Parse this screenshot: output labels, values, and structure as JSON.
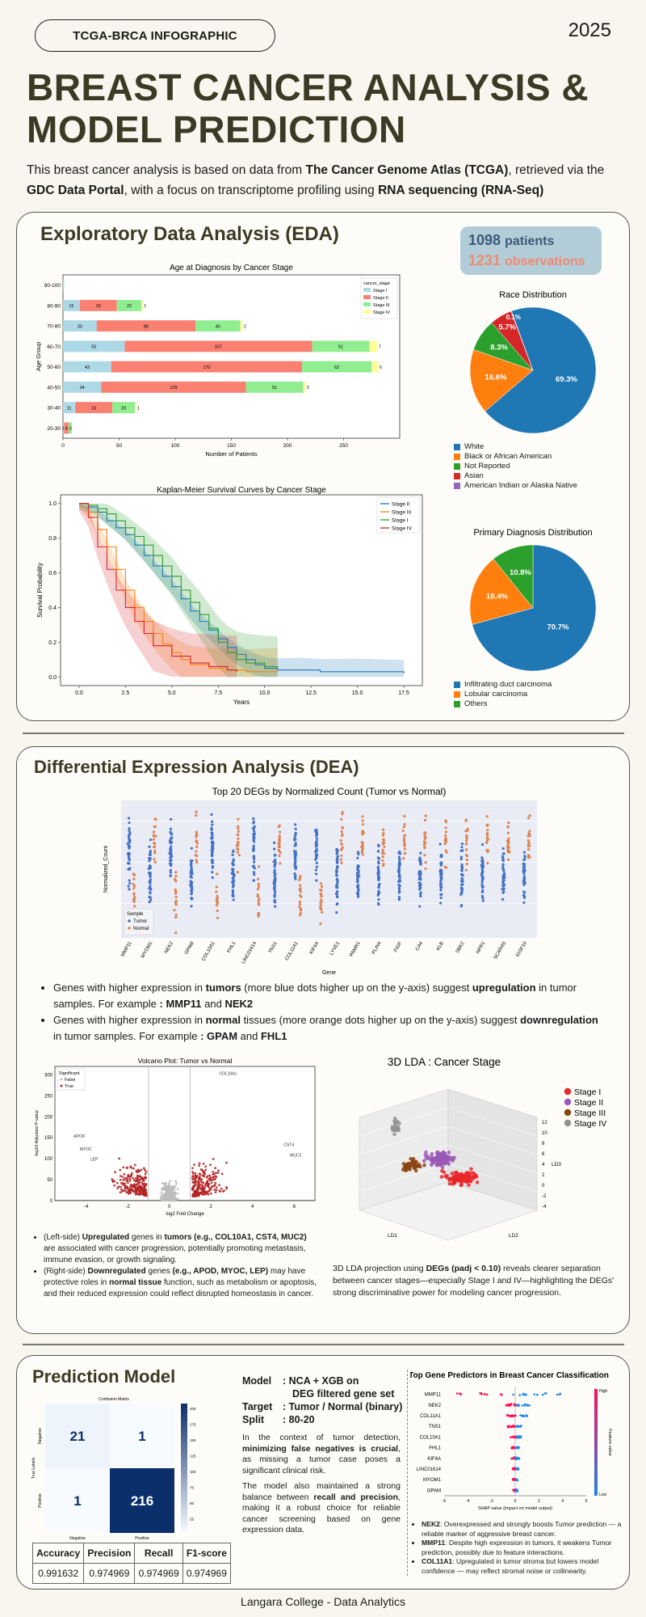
{
  "header": {
    "tag": "TCGA-BRCA INFOGRAPHIC",
    "year": "2025",
    "title_line1": "BREAST CANCER ANALYSIS &",
    "title_line2": "MODEL PREDICTION",
    "intro": {
      "t1": "This breast cancer analysis is based on data from ",
      "b1": "The Cancer Genome Atlas (TCGA)",
      "t2": ", retrieved via the ",
      "b2": "GDC Data Portal",
      "t3": ", with a focus on transcriptome profiling using ",
      "b3": "RNA sequencing (RNA-Seq)"
    }
  },
  "eda": {
    "title": "Exploratory Data Analysis (EDA)",
    "stats": {
      "patients_num": "1098",
      "patients_label": "patients",
      "obs_num": "1231",
      "obs_label": "observations"
    }
  },
  "colors": {
    "stage1": "#add8e6",
    "stage2": "#fa8072",
    "stage3": "#90ee90",
    "stage4": "#ffff99",
    "km_stage2": "#1f77b4",
    "km_stage3": "#ff7f0e",
    "km_stage1": "#2ca02c",
    "km_stage4": "#d62728",
    "tumor": "#4472c4",
    "normal": "#dd8452"
  },
  "chart_data": [
    {
      "type": "bar",
      "title": "Age at Diagnosis by Cancer Stage",
      "xlabel": "Number of Patients",
      "ylabel": "Age Group",
      "xlim": [
        0,
        300
      ],
      "xticks": [
        "0",
        "50",
        "100",
        "150",
        "200",
        "250"
      ],
      "legend_title": "cancer_stage",
      "legend_position": "top-right",
      "categories": [
        "90-100",
        "80-90",
        "70-80",
        "60-70",
        "50-60",
        "40-50",
        "30-40",
        "20-30"
      ],
      "series": [
        {
          "name": "Stage I",
          "values": [
            1,
            15,
            30,
            55,
            43,
            34,
            11,
            1
          ]
        },
        {
          "name": "Stage II",
          "values": [
            0,
            33,
            88,
            167,
            170,
            129,
            33,
            4
          ]
        },
        {
          "name": "Stage III",
          "values": [
            0,
            22,
            40,
            51,
            62,
            51,
            20,
            3
          ]
        },
        {
          "name": "Stage IV",
          "values": [
            0,
            1,
            2,
            7,
            6,
            2,
            1,
            0
          ]
        }
      ],
      "labels": [
        [
          "",
          "15",
          "30",
          "55",
          "43",
          "34",
          "11",
          "1"
        ],
        [
          "",
          "33",
          "88",
          "167",
          "170",
          "129",
          "33",
          "4"
        ],
        [
          "",
          "22",
          "40",
          "51",
          "62",
          "51",
          "20",
          "3"
        ],
        [
          "",
          "1",
          "2",
          "7",
          "6",
          "2",
          "1",
          ""
        ]
      ]
    },
    {
      "type": "line",
      "title": "Kaplan-Meier Survival Curves by Cancer Stage",
      "xlabel": "Years",
      "ylabel": "Survival Probability",
      "xlim": [
        -1,
        18.5
      ],
      "ylim": [
        -0.05,
        1.05
      ],
      "xticks": [
        "0.0",
        "2.5",
        "5.0",
        "7.5",
        "10.0",
        "12.5",
        "15.0",
        "17.5"
      ],
      "yticks": [
        "0.0",
        "0.2",
        "0.4",
        "0.6",
        "0.8",
        "1.0"
      ],
      "legend_position": "top-right",
      "series": [
        {
          "name": "Stage II",
          "points": [
            [
              0,
              1
            ],
            [
              0.5,
              0.98
            ],
            [
              1,
              0.95
            ],
            [
              1.5,
              0.9
            ],
            [
              2,
              0.86
            ],
            [
              2.5,
              0.82
            ],
            [
              3,
              0.76
            ],
            [
              3.5,
              0.7
            ],
            [
              4,
              0.64
            ],
            [
              4.5,
              0.58
            ],
            [
              5,
              0.52
            ],
            [
              5.5,
              0.45
            ],
            [
              6,
              0.38
            ],
            [
              6.5,
              0.32
            ],
            [
              7,
              0.27
            ],
            [
              7.5,
              0.22
            ],
            [
              8,
              0.17
            ],
            [
              8.5,
              0.13
            ],
            [
              9,
              0.1
            ],
            [
              9.5,
              0.07
            ],
            [
              10,
              0.05
            ],
            [
              10.7,
              0.04
            ],
            [
              12,
              0.04
            ],
            [
              13,
              0.03
            ],
            [
              15,
              0.03
            ],
            [
              17.5,
              0.02
            ]
          ]
        },
        {
          "name": "Stage III",
          "points": [
            [
              0,
              1
            ],
            [
              0.5,
              0.95
            ],
            [
              1,
              0.85
            ],
            [
              1.5,
              0.75
            ],
            [
              2,
              0.62
            ],
            [
              2.5,
              0.5
            ],
            [
              3,
              0.4
            ],
            [
              3.5,
              0.32
            ],
            [
              4,
              0.25
            ],
            [
              4.5,
              0.19
            ],
            [
              5,
              0.14
            ],
            [
              5.5,
              0.1
            ],
            [
              6,
              0.07
            ],
            [
              7,
              0.05
            ],
            [
              8,
              0.04
            ],
            [
              9,
              0.03
            ],
            [
              10.7,
              0.03
            ]
          ]
        },
        {
          "name": "Stage I",
          "points": [
            [
              0,
              1
            ],
            [
              0.5,
              0.99
            ],
            [
              1,
              0.97
            ],
            [
              1.5,
              0.94
            ],
            [
              2,
              0.9
            ],
            [
              2.5,
              0.86
            ],
            [
              3,
              0.81
            ],
            [
              3.5,
              0.76
            ],
            [
              4,
              0.7
            ],
            [
              4.5,
              0.64
            ],
            [
              5,
              0.58
            ],
            [
              5.5,
              0.5
            ],
            [
              6,
              0.43
            ],
            [
              6.5,
              0.36
            ],
            [
              7,
              0.28
            ],
            [
              7.5,
              0.2
            ],
            [
              8,
              0.14
            ],
            [
              8.5,
              0.1
            ],
            [
              9,
              0.08
            ],
            [
              10,
              0.06
            ],
            [
              10.7,
              0.05
            ]
          ]
        },
        {
          "name": "Stage IV",
          "points": [
            [
              0,
              1
            ],
            [
              0.5,
              0.92
            ],
            [
              1,
              0.75
            ],
            [
              1.5,
              0.62
            ],
            [
              2,
              0.5
            ],
            [
              2.5,
              0.4
            ],
            [
              3,
              0.32
            ],
            [
              3.5,
              0.25
            ],
            [
              4,
              0.18
            ],
            [
              5,
              0.12
            ],
            [
              6,
              0.08
            ],
            [
              7,
              0.06
            ],
            [
              8,
              0.04
            ],
            [
              8.5,
              0.03
            ]
          ]
        }
      ]
    },
    {
      "type": "pie",
      "title": "Race Distribution",
      "labels": [
        "White",
        "Black or African American",
        "Not Reported",
        "Asian",
        "American Indian or Alaska Native"
      ],
      "values": [
        69.3,
        16.6,
        8.3,
        5.7,
        0.1
      ],
      "value_labels": [
        "69.3%",
        "16.6%",
        "8.3%",
        "5.7%",
        "0.1%"
      ],
      "colors": [
        "#1f77b4",
        "#ff7f0e",
        "#2ca02c",
        "#d62728",
        "#9467bd"
      ],
      "legend_position": "bottom"
    },
    {
      "type": "pie",
      "title": "Primary Diagnosis Distribution",
      "labels": [
        "Infiltrating duct carcinoma",
        "Lobular carcinoma",
        "Others"
      ],
      "values": [
        70.7,
        18.4,
        10.8
      ],
      "value_labels": [
        "70.7%",
        "18.4%",
        "10.8%"
      ],
      "colors": [
        "#1f77b4",
        "#ff7f0e",
        "#2ca02c"
      ],
      "legend_position": "bottom"
    },
    {
      "type": "scatter",
      "title": "Top 20 DEGs by Normalized Count (Tumor vs Normal)",
      "xlabel": "Gene",
      "ylabel": "Normalized_Count",
      "yscale": "log",
      "legend_title": "Sample",
      "legend_position": "bottom-left",
      "series_names": [
        "Tumor",
        "Normal"
      ],
      "categories": [
        "MMP11",
        "MYOM1",
        "NEK2",
        "GPAM",
        "COL10A1",
        "FHL1",
        "LINC01614",
        "TNS1",
        "COL11A1",
        "KIF4A",
        "LYVE1",
        "PAMR1",
        "PLIN4",
        "FIGF",
        "CA4",
        "KLB",
        "SBK2",
        "NPR1",
        "SCARA5",
        "IGSF10"
      ],
      "tumor_high": [
        1,
        0,
        1,
        0,
        1,
        0,
        1,
        0,
        1,
        1,
        0,
        0,
        0,
        0,
        0,
        0,
        0,
        0,
        0,
        0
      ],
      "normal_high": [
        0,
        1,
        0,
        1,
        0,
        1,
        0,
        1,
        0,
        0,
        1,
        1,
        1,
        1,
        1,
        1,
        1,
        1,
        1,
        1
      ]
    },
    {
      "type": "scatter",
      "title": "Volcano Plot: Tumor vs Normal",
      "xlabel": "log2 Fold Change",
      "ylabel": "-log10 Adjusted P-value",
      "xticks": [
        "-4",
        "-2",
        "0",
        "2",
        "4",
        "6"
      ],
      "yticks": [
        "0",
        "50",
        "100",
        "150",
        "200",
        "250",
        "300"
      ],
      "legend_title": "Significant",
      "legend_entries": [
        "False",
        "True"
      ],
      "annotations": [
        "COL10A1",
        "CST4",
        "MUC2",
        "APOD",
        "MYOC",
        "LEP"
      ]
    },
    {
      "type": "scatter",
      "title": "3D LDA : Cancer Stage",
      "axis_labels": [
        "LD1",
        "LD2",
        "LD3"
      ],
      "legend_entries": [
        "Stage I",
        "Stage II",
        "Stage III",
        "Stage IV"
      ],
      "colors": [
        "#e8282b",
        "#9b59b6",
        "#8b4513",
        "#909090"
      ]
    },
    {
      "type": "heatmap",
      "title": "Confusion Matrix",
      "xlabel": "Predicted Labels",
      "ylabel": "True Labels",
      "x_categories": [
        "Negative",
        "Positive"
      ],
      "y_categories": [
        "Negative",
        "Positive"
      ],
      "values": [
        [
          21,
          1
        ],
        [
          1,
          216
        ]
      ],
      "colorbar_ticks": [
        "200",
        "175",
        "150",
        "125",
        "100",
        "75",
        "50",
        "25"
      ]
    },
    {
      "type": "scatter",
      "title": "Top Gene Predictors in Breast Cancer Classification",
      "xlabel": "SHAP value (impact on model output)",
      "colorbar_label": "Feature value",
      "colorbar_high": "High",
      "colorbar_low": "Low",
      "categories": [
        "MMP11",
        "NEK2",
        "COL11A1",
        "TNS1",
        "COL10A1",
        "FHL1",
        "KIF4A",
        "LINC01614",
        "MYOM1",
        "GPAM"
      ],
      "xticks": [
        "-6",
        "-4",
        "-2",
        "0",
        "2",
        "4",
        "6"
      ]
    }
  ],
  "dea": {
    "title": "Differential Expression Analysis (DEA)",
    "bullets": [
      {
        "t1": "Genes with higher expression in ",
        "b1": "tumors",
        "t2": " (more blue dots higher up on the y-axis) suggest ",
        "b2": "upregulation",
        "t3": " in tumor samples. For example ",
        "b3": ": MMP11",
        "t4": " and ",
        "b4": "NEK2"
      },
      {
        "t1": "Genes with higher expression in ",
        "b1": "normal",
        "t2": " tissues (more orange dots higher up on the y-axis) suggest ",
        "b2": "downregulation",
        "t3": " in tumor samples. For example ",
        "b3": ": GPAM",
        "t4": " and ",
        "b4": "FHL1"
      }
    ],
    "volcano_bullets": [
      {
        "t1": "(Left-side) ",
        "b1": "Upregulated",
        "t2": " genes in ",
        "b2": "tumors (e.g., COL10A1, CST4, MUC2)",
        "t3": " are associated with cancer progression, potentially promoting metastasis, immune evasion, or growth signaling."
      },
      {
        "t1": "(Right-side) ",
        "b1": "Downregulated",
        "t2": " genes ",
        "b2": "(e.g., APOD, MYOC, LEP)",
        "t3": " may have protective roles in ",
        "b3": "normal tissue",
        "t4": " function, such as metabolism or apoptosis, and their reduced expression could reflect disrupted homeostasis in cancer."
      }
    ],
    "lda_text": {
      "t1": "3D LDA projection using ",
      "b1": "DEGs (padj < 0.10)",
      "t2": " reveals clearer separation between cancer stages—especially Stage I and IV—highlighting the DEGs' strong discriminative power for modeling cancer progression."
    }
  },
  "model": {
    "title": "Prediction Model",
    "model_label": "Model",
    "model_value_1": ": NCA + XGB on",
    "model_value_2": "DEG filtered gene set",
    "target_label": "Target",
    "target_value": ": Tumor / Normal (binary)",
    "split_label": "Split",
    "split_value": ": 80-20",
    "para1": {
      "t1": "In the context of tumor detection, ",
      "b1": "minimizing false negatives is crucial",
      "t2": ", as missing a tumor case poses a significant clinical risk."
    },
    "para2": {
      "t1": "The model also maintained a strong balance between ",
      "b1": "recall and precision",
      "t2": ", making it a robust choice for reliable cancer screening based on gene expression data."
    },
    "metrics": {
      "headers": [
        "Accuracy",
        "Precision",
        "Recall",
        "F1-score"
      ],
      "values": [
        "0.991632",
        "0.974969",
        "0.974969",
        "0.974969"
      ]
    },
    "shap_bullets": [
      {
        "b": "NEK2",
        "t": ": Overexpressed and strongly boosts Tumor prediction — a reliable marker of aggressive breast cancer."
      },
      {
        "b": "MMP11",
        "t": ": Despite high expression in tumors, it weakens Tumor prediction, possibly due to feature interactions."
      },
      {
        "b": "COL11A1",
        "t": ": Upregulated in tumor stroma but lowers model confidence — may reflect stromal noise or collinearity."
      }
    ]
  },
  "footer": {
    "text": "Langara College - Data Analytics"
  }
}
